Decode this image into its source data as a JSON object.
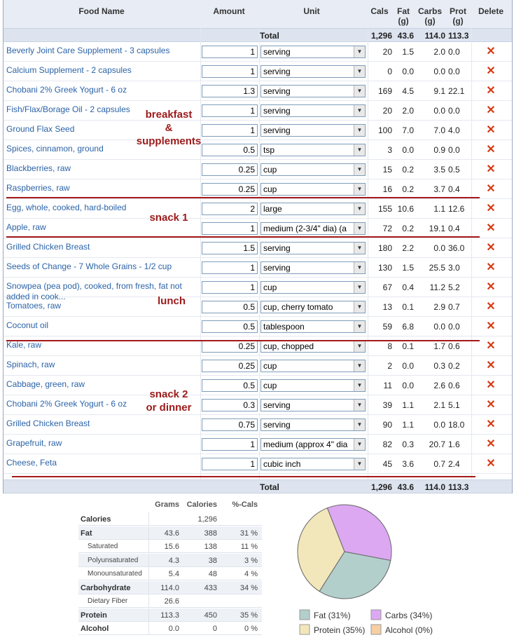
{
  "header": {
    "food_name": "Food Name",
    "amount": "Amount",
    "unit": "Unit",
    "cals": "Cals",
    "fat": "Fat",
    "fat_unit": "(g)",
    "carbs": "Carbs",
    "carbs_unit": "(g)",
    "prot": "Prot",
    "prot_unit": "(g)",
    "delete": "Delete"
  },
  "totals": {
    "label": "Total",
    "cals": "1,296",
    "fat": "43.6",
    "carbs": "114.0",
    "prot": "113.3"
  },
  "rows": [
    {
      "name": "Beverly Joint Care Supplement - 3 capsules",
      "name2": "",
      "amount": "1",
      "unit": "serving",
      "cals": "20",
      "fat": "1.5",
      "carbs": "2.0",
      "prot": "0.0"
    },
    {
      "name": "Calcium Supplement - 2 capsules",
      "name2": "",
      "amount": "1",
      "unit": "serving",
      "cals": "0",
      "fat": "0.0",
      "carbs": "0.0",
      "prot": "0.0"
    },
    {
      "name": "Chobani 2% Greek Yogurt - 6 oz",
      "name2": "",
      "amount": "1.3",
      "unit": "serving",
      "cals": "169",
      "fat": "4.5",
      "carbs": "9.1",
      "prot": "22.1"
    },
    {
      "name": "Fish/Flax/Borage Oil - 2 capsules",
      "name2": "",
      "amount": "1",
      "unit": "serving",
      "cals": "20",
      "fat": "2.0",
      "carbs": "0.0",
      "prot": "0.0"
    },
    {
      "name": "Ground Flax Seed",
      "name2": "",
      "amount": "1",
      "unit": "serving",
      "cals": "100",
      "fat": "7.0",
      "carbs": "7.0",
      "prot": "4.0"
    },
    {
      "name": "Spices, cinnamon, ground",
      "name2": "",
      "amount": "0.5",
      "unit": "tsp",
      "cals": "3",
      "fat": "0.0",
      "carbs": "0.9",
      "prot": "0.0"
    },
    {
      "name": "Blackberries, raw",
      "name2": "",
      "amount": "0.25",
      "unit": "cup",
      "cals": "15",
      "fat": "0.2",
      "carbs": "3.5",
      "prot": "0.5"
    },
    {
      "name": "Raspberries, raw",
      "name2": "",
      "amount": "0.25",
      "unit": "cup",
      "cals": "16",
      "fat": "0.2",
      "carbs": "3.7",
      "prot": "0.4"
    },
    {
      "name": "Egg, whole, cooked, hard-boiled",
      "name2": "",
      "amount": "2",
      "unit": "large",
      "cals": "155",
      "fat": "10.6",
      "carbs": "1.1",
      "prot": "12.6"
    },
    {
      "name": "Apple, raw",
      "name2": "",
      "amount": "1",
      "unit": "medium (2-3/4\" dia) (a",
      "cals": "72",
      "fat": "0.2",
      "carbs": "19.1",
      "prot": "0.4"
    },
    {
      "name": "Grilled Chicken Breast",
      "name2": "",
      "amount": "1.5",
      "unit": "serving",
      "cals": "180",
      "fat": "2.2",
      "carbs": "0.0",
      "prot": "36.0"
    },
    {
      "name": "Seeds of Change - 7 Whole Grains - 1/2 cup",
      "name2": "",
      "amount": "1",
      "unit": "serving",
      "cals": "130",
      "fat": "1.5",
      "carbs": "25.5",
      "prot": "3.0"
    },
    {
      "name": "Snowpea (pea pod), cooked, from fresh, fat not",
      "name2": "added in cook...",
      "amount": "1",
      "unit": "cup",
      "cals": "67",
      "fat": "0.4",
      "carbs": "11.2",
      "prot": "5.2"
    },
    {
      "name": "Tomatoes, raw",
      "name2": "",
      "amount": "0.5",
      "unit": "cup, cherry tomato",
      "cals": "13",
      "fat": "0.1",
      "carbs": "2.9",
      "prot": "0.7"
    },
    {
      "name": "Coconut oil",
      "name2": "",
      "amount": "0.5",
      "unit": "tablespoon",
      "cals": "59",
      "fat": "6.8",
      "carbs": "0.0",
      "prot": "0.0"
    },
    {
      "name": "Kale, raw",
      "name2": "",
      "amount": "0.25",
      "unit": "cup, chopped",
      "cals": "8",
      "fat": "0.1",
      "carbs": "1.7",
      "prot": "0.6"
    },
    {
      "name": "Spinach, raw",
      "name2": "",
      "amount": "0.25",
      "unit": "cup",
      "cals": "2",
      "fat": "0.0",
      "carbs": "0.3",
      "prot": "0.2"
    },
    {
      "name": "Cabbage, green, raw",
      "name2": "",
      "amount": "0.5",
      "unit": "cup",
      "cals": "11",
      "fat": "0.0",
      "carbs": "2.6",
      "prot": "0.6"
    },
    {
      "name": "Chobani 2% Greek Yogurt - 6 oz",
      "name2": "",
      "amount": "0.3",
      "unit": "serving",
      "cals": "39",
      "fat": "1.1",
      "carbs": "2.1",
      "prot": "5.1"
    },
    {
      "name": "Grilled Chicken Breast",
      "name2": "",
      "amount": "0.75",
      "unit": "serving",
      "cals": "90",
      "fat": "1.1",
      "carbs": "0.0",
      "prot": "18.0"
    },
    {
      "name": "Grapefruit, raw",
      "name2": "",
      "amount": "1",
      "unit": "medium (approx 4\" dia",
      "cals": "82",
      "fat": "0.3",
      "carbs": "20.7",
      "prot": "1.6"
    },
    {
      "name": "Cheese, Feta",
      "name2": "",
      "amount": "1",
      "unit": "cubic inch",
      "cals": "45",
      "fat": "3.6",
      "carbs": "0.7",
      "prot": "2.4"
    }
  ],
  "delete_glyph": "✕",
  "unit_arrow": "▼",
  "meal_labels": {
    "breakfast_1": "breakfast",
    "breakfast_2": "&",
    "breakfast_3": "supplements",
    "snack1": "snack 1",
    "lunch": "lunch",
    "snack2_1": "snack 2",
    "snack2_2": "or dinner"
  },
  "summary": {
    "headers": {
      "grams": "Grams",
      "calories": "Calories",
      "pct": "%-Cals"
    },
    "rows": [
      {
        "label": "Calories",
        "grams": "",
        "calories": "1,296",
        "pct": "",
        "style": "b"
      },
      {
        "label": "Fat",
        "grams": "43.6",
        "calories": "388",
        "pct": "31 %",
        "style": "b"
      },
      {
        "label": "Saturated",
        "grams": "15.6",
        "calories": "138",
        "pct": "11 %",
        "style": "sub"
      },
      {
        "label": "Polyunsaturated",
        "grams": "4.3",
        "calories": "38",
        "pct": "3 %",
        "style": "sub"
      },
      {
        "label": "Monounsaturated",
        "grams": "5.4",
        "calories": "48",
        "pct": "4 %",
        "style": "sub"
      },
      {
        "label": "Carbohydrate",
        "grams": "114.0",
        "calories": "433",
        "pct": "34 %",
        "style": "b"
      },
      {
        "label": "Dietary Fiber",
        "grams": "26.6",
        "calories": "",
        "pct": "",
        "style": "sub"
      },
      {
        "label": "Protein",
        "grams": "113.3",
        "calories": "450",
        "pct": "35 %",
        "style": "b"
      },
      {
        "label": "Alcohol",
        "grams": "0.0",
        "calories": "0",
        "pct": "0 %",
        "style": "b"
      }
    ]
  },
  "chart_data": {
    "type": "pie",
    "slices": [
      {
        "name": "Fat",
        "value": 31,
        "label": "Fat  (31%)",
        "color": "#b3cfcc"
      },
      {
        "name": "Carbs",
        "value": 34,
        "label": "Carbs  (34%)",
        "color": "#dca8f2"
      },
      {
        "name": "Protein",
        "value": 35,
        "label": "Protein  (35%)",
        "color": "#f2e6bb"
      },
      {
        "name": "Alcohol",
        "value": 0,
        "label": "Alcohol  (0%)",
        "color": "#f6cfa3"
      }
    ]
  },
  "colors": {
    "link": "#2b63a7",
    "meal_label": "#9c1a1a",
    "delete": "#d63a13",
    "header_bg": "#e7ecf5"
  }
}
